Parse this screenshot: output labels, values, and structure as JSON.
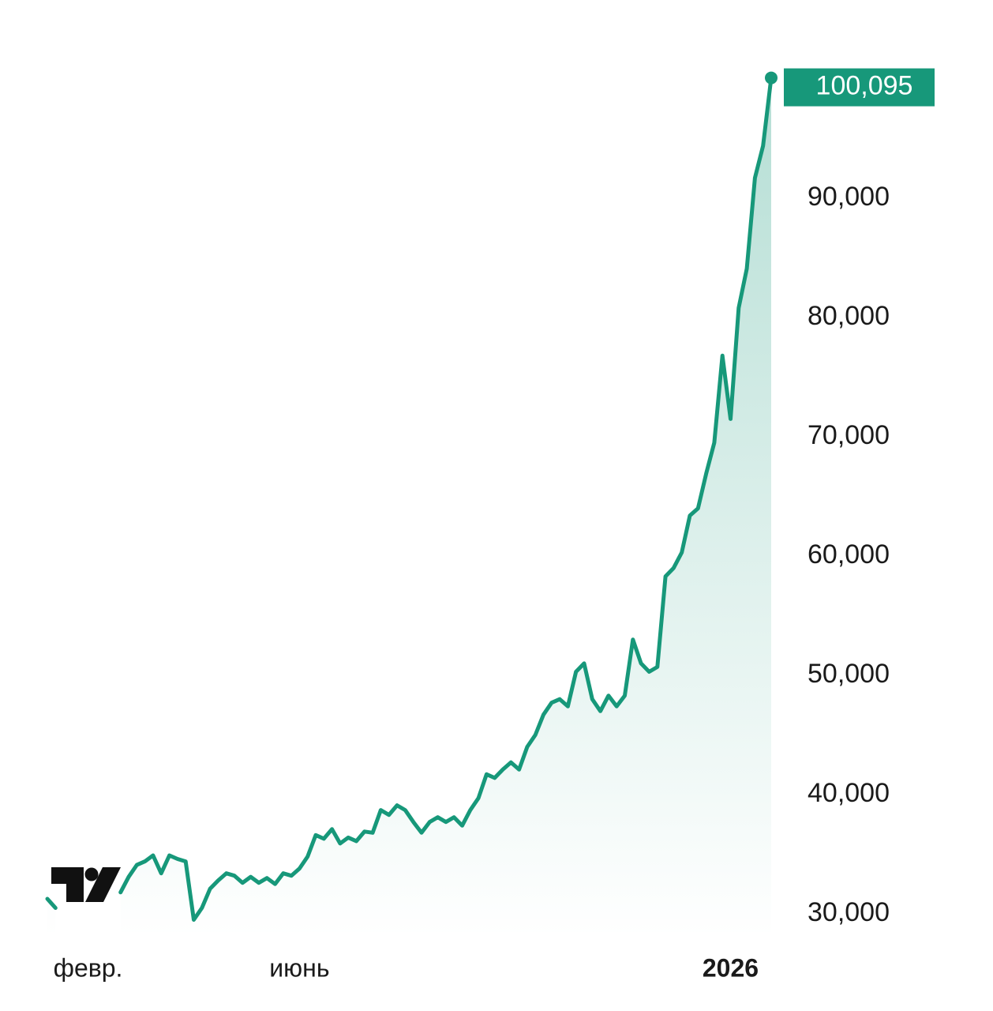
{
  "chart_data": {
    "type": "line",
    "categories": [
      null,
      null,
      null,
      null,
      null,
      "февр.",
      null,
      null,
      null,
      null,
      null,
      null,
      null,
      null,
      null,
      null,
      null,
      null,
      null,
      null,
      null,
      null,
      null,
      null,
      null,
      null,
      null,
      null,
      null,
      null,
      null,
      "июнь",
      null,
      null,
      null,
      null,
      null,
      null,
      null,
      null,
      null,
      null,
      null,
      null,
      null,
      null,
      null,
      null,
      null,
      null,
      null,
      null,
      null,
      null,
      null,
      null,
      null,
      null,
      null,
      null,
      null,
      null,
      null,
      null,
      null,
      null,
      null,
      null,
      null,
      null,
      null,
      null,
      null,
      null,
      null,
      null,
      null,
      null,
      null,
      null,
      null,
      null,
      null,
      null,
      "2026",
      null,
      null,
      null,
      null,
      null
    ],
    "series": [
      {
        "name": null,
        "color": "#17987a",
        "values": [
          31260,
          30500,
          null,
          null,
          null,
          null,
          null,
          null,
          null,
          31800,
          33100,
          34100,
          34400,
          34900,
          33400,
          34900,
          34600,
          34400,
          29500,
          30500,
          32100,
          32800,
          33400,
          33200,
          32600,
          33100,
          32600,
          33000,
          32500,
          33400,
          33200,
          33800,
          34800,
          36600,
          36300,
          37100,
          35900,
          36400,
          36100,
          36900,
          36800,
          38700,
          38300,
          39100,
          38700,
          37700,
          36800,
          37700,
          38100,
          37700,
          38100,
          37400,
          38700,
          39700,
          41700,
          41400,
          42100,
          42700,
          42100,
          44000,
          45000,
          46700,
          47700,
          48000,
          47400,
          50300,
          51000,
          48000,
          47000,
          48300,
          47400,
          48300,
          53000,
          51000,
          50300,
          50700,
          58300,
          59000,
          60300,
          63400,
          64000,
          66900,
          69500,
          76800,
          71500,
          80800,
          84100,
          91700,
          94400,
          100095
        ],
        "value_labels": [
          null,
          null,
          null,
          null,
          null,
          null,
          null,
          null,
          null,
          null,
          null,
          null,
          null,
          null,
          null,
          null,
          null,
          null,
          null,
          null,
          null,
          null,
          null,
          null,
          null,
          null,
          null,
          null,
          null,
          null,
          null,
          null,
          null,
          null,
          null,
          null,
          null,
          null,
          null,
          null,
          null,
          null,
          null,
          null,
          null,
          null,
          null,
          null,
          null,
          null,
          null,
          null,
          null,
          null,
          null,
          null,
          null,
          null,
          null,
          null,
          null,
          null,
          null,
          null,
          null,
          null,
          null,
          null,
          null,
          null,
          null,
          null,
          null,
          null,
          null,
          null,
          null,
          null,
          null,
          null,
          null,
          null,
          null,
          null,
          null,
          null,
          null,
          null,
          null,
          "100,095"
        ]
      }
    ],
    "ylim": [
      28000,
      104000
    ],
    "yticks": [
      {
        "value": 30000,
        "label": "30,000"
      },
      {
        "value": 40000,
        "label": "40,000"
      },
      {
        "value": 50000,
        "label": "50,000"
      },
      {
        "value": 60000,
        "label": "60,000"
      },
      {
        "value": 70000,
        "label": "70,000"
      },
      {
        "value": 80000,
        "label": "80,000"
      },
      {
        "value": 90000,
        "label": "90,000"
      }
    ],
    "grid": false
  }
}
